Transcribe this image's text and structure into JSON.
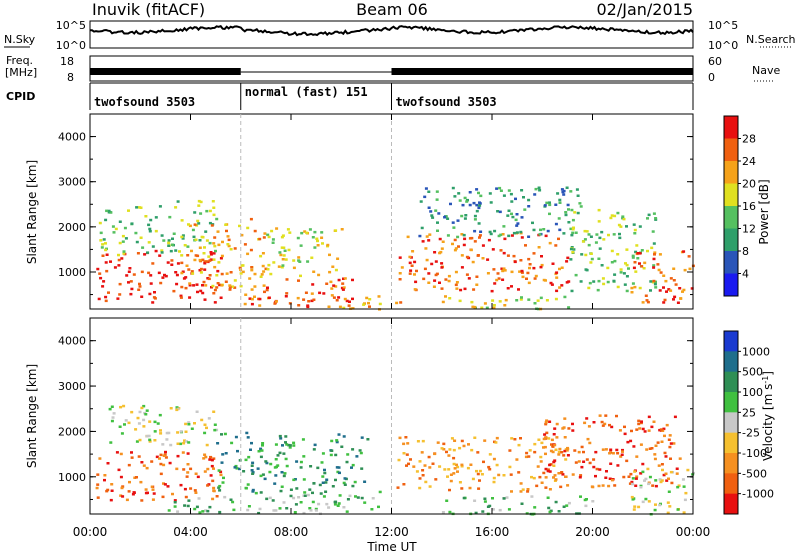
{
  "header": {
    "station": "Inuvik (fitACF)",
    "beam": "Beam 06",
    "date": "02/Jan/2015"
  },
  "status_panels": {
    "nsky": {
      "label": "N.Sky",
      "tick_top": "10^5",
      "tick_bottom": "10^0"
    },
    "nsearch": {
      "label": "N.Search",
      "tick_top": "10^5",
      "tick_bottom": "10^0"
    },
    "freq": {
      "label_line1": "Freq.",
      "label_line2": "[MHz]",
      "tick_top": "18",
      "tick_bottom": "8"
    },
    "nave": {
      "label": "Nave",
      "tick_top": "60",
      "tick_bottom": "0"
    },
    "cpid": {
      "label": "CPID",
      "segments": [
        {
          "start_hour": 0,
          "end_hour": 6,
          "name": "twofsound 3503"
        },
        {
          "start_hour": 6,
          "end_hour": 12,
          "name": "normal (fast) 151"
        },
        {
          "start_hour": 12,
          "end_hour": 24,
          "name": "twofsound 3503"
        }
      ]
    }
  },
  "chart_data": [
    {
      "type": "heatmap",
      "quantity": "power",
      "xlabel": "",
      "ylabel": "Slant Range [km]",
      "xlim": [
        0,
        24
      ],
      "ylim": [
        180,
        4500
      ],
      "y_ticks": [
        "1000",
        "2000",
        "3000",
        "4000"
      ],
      "colorbar": {
        "label": "Power [dB]",
        "ticks": [
          "4",
          "8",
          "12",
          "16",
          "20",
          "24",
          "28"
        ],
        "colors": [
          "#1a1af0",
          "#2a55b8",
          "#2f9f6a",
          "#55c060",
          "#e0e020",
          "#f5a21a",
          "#f06010",
          "#e81010"
        ]
      },
      "echo_regions": [
        {
          "t0": 0.2,
          "t1": 5.2,
          "r0": 350,
          "r1": 1500,
          "level": 7
        },
        {
          "t0": 0.3,
          "t1": 5.0,
          "r0": 1400,
          "r1": 2600,
          "level": 3
        },
        {
          "t0": 3.5,
          "t1": 7.0,
          "r0": 600,
          "r1": 2200,
          "level": 5
        },
        {
          "t0": 6.0,
          "t1": 10.5,
          "r0": 250,
          "r1": 900,
          "level": 6
        },
        {
          "t0": 7.0,
          "t1": 10.0,
          "r0": 800,
          "r1": 2000,
          "level": 4
        },
        {
          "t0": 10.0,
          "t1": 12.5,
          "r0": 200,
          "r1": 500,
          "level": 5
        },
        {
          "t0": 12.2,
          "t1": 19.0,
          "r0": 600,
          "r1": 1900,
          "level": 6
        },
        {
          "t0": 13.0,
          "t1": 19.5,
          "r0": 1800,
          "r1": 2900,
          "level": 2
        },
        {
          "t0": 14.0,
          "t1": 19.0,
          "r0": 200,
          "r1": 500,
          "level": 4
        },
        {
          "t0": 19.0,
          "t1": 22.5,
          "r0": 600,
          "r1": 2400,
          "level": 3
        },
        {
          "t0": 21.5,
          "t1": 24.0,
          "r0": 300,
          "r1": 1500,
          "level": 6
        }
      ]
    },
    {
      "type": "heatmap",
      "quantity": "velocity",
      "xlabel": "Time UT",
      "ylabel": "Slant Range [km]",
      "xlim": [
        0,
        24
      ],
      "ylim": [
        180,
        4500
      ],
      "x_ticks": [
        "00:00",
        "04:00",
        "08:00",
        "12:00",
        "16:00",
        "20:00",
        "00:00"
      ],
      "y_ticks": [
        "1000",
        "2000",
        "3000",
        "4000"
      ],
      "colorbar": {
        "label": "Velocity [m s^-1]",
        "ticks": [
          "1000",
          "500",
          "100",
          "25",
          "-25",
          "-100",
          "-500",
          "-1000"
        ],
        "colors": [
          "#1a3ad0",
          "#1f6e8c",
          "#2f8f55",
          "#40c040",
          "#c8c8c8",
          "#f5c030",
          "#f59020",
          "#f06010",
          "#e81010"
        ]
      },
      "echo_regions": [
        {
          "t0": 0.2,
          "t1": 5.2,
          "r0": 500,
          "r1": 1600,
          "level": 7
        },
        {
          "t0": 0.5,
          "t1": 5.0,
          "r0": 1700,
          "r1": 2600,
          "level": 4
        },
        {
          "t0": 3.0,
          "t1": 6.5,
          "r0": 200,
          "r1": 600,
          "level": 3
        },
        {
          "t0": 5.0,
          "t1": 11.0,
          "r0": 700,
          "r1": 2000,
          "level": 2
        },
        {
          "t0": 6.5,
          "t1": 11.5,
          "r0": 200,
          "r1": 700,
          "level": 3
        },
        {
          "t0": 12.2,
          "t1": 19.0,
          "r0": 700,
          "r1": 1900,
          "level": 6
        },
        {
          "t0": 14.0,
          "t1": 20.0,
          "r0": 200,
          "r1": 600,
          "level": 3
        },
        {
          "t0": 18.0,
          "t1": 23.5,
          "r0": 800,
          "r1": 2400,
          "level": 7
        },
        {
          "t0": 21.5,
          "t1": 24.0,
          "r0": 200,
          "r1": 1200,
          "level": 4
        }
      ]
    }
  ]
}
